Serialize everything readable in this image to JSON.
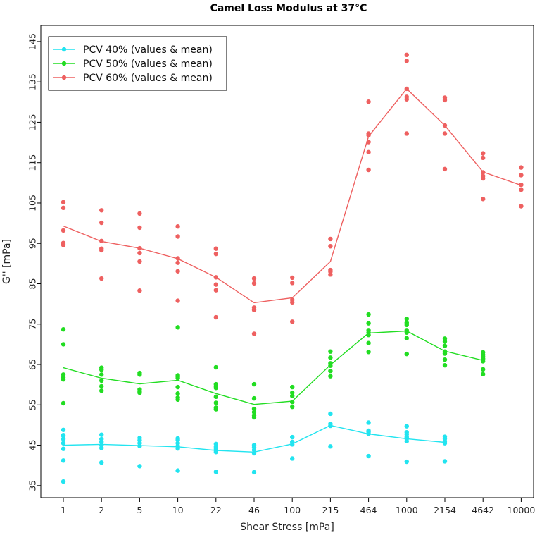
{
  "chart_data": {
    "type": "scatter",
    "title": "Camel Loss Modulus at 37°C",
    "xlabel": "Shear Stress [mPa]",
    "ylabel": "G'' [mPa]",
    "x_tick_labels": [
      "1",
      "2",
      "5",
      "10",
      "22",
      "46",
      "100",
      "215",
      "464",
      "1000",
      "2154",
      "4642",
      "10000"
    ],
    "y_ticks": [
      35,
      45,
      55,
      65,
      75,
      85,
      95,
      105,
      115,
      125,
      135,
      145
    ],
    "ylim": [
      32,
      149
    ],
    "legend_position": "top-left",
    "series": [
      {
        "name": "PCV 40% (values & mean)",
        "color": "#22e4f0",
        "mean": [
          45.0,
          45.2,
          44.9,
          44.6,
          43.7,
          43.3,
          45.3,
          49.9,
          47.8,
          46.6,
          45.7,
          null,
          null
        ],
        "values": [
          [
            36.0,
            41.2,
            44.1,
            45.5,
            46.5,
            47.3,
            47.5,
            48.8
          ],
          [
            40.7,
            44.3,
            45.0,
            45.8,
            46.5,
            47.6
          ],
          [
            39.8,
            44.8,
            45.5,
            46.2,
            46.8
          ],
          [
            38.7,
            44.2,
            44.8,
            45.5,
            46.3,
            46.7
          ],
          [
            38.4,
            43.3,
            44.0,
            44.6,
            45.3
          ],
          [
            38.3,
            43.0,
            43.8,
            44.5,
            45.0
          ],
          [
            41.7,
            45.2,
            45.8,
            47.0
          ],
          [
            44.7,
            49.8,
            50.3,
            52.8
          ],
          [
            42.3,
            47.8,
            48.3,
            48.6,
            50.6
          ],
          [
            40.9,
            46.0,
            46.6,
            47.0,
            47.7,
            48.2,
            49.7
          ],
          [
            41.0,
            45.5,
            46.0,
            46.6,
            47.1
          ],
          [],
          []
        ]
      },
      {
        "name": "PCV 50% (values & mean)",
        "color": "#22dd22",
        "mean": [
          64.2,
          61.6,
          60.2,
          61.1,
          57.8,
          55.1,
          55.9,
          64.9,
          72.8,
          73.3,
          68.3,
          66.0,
          null
        ],
        "values": [
          [
            55.4,
            61.3,
            61.8,
            62.5,
            70.0,
            73.7
          ],
          [
            58.5,
            59.6,
            61.0,
            62.5,
            63.7,
            64.2
          ],
          [
            58.0,
            58.3,
            58.8,
            62.5,
            62.9
          ],
          [
            56.3,
            56.8,
            57.8,
            59.4,
            61.6,
            62.0,
            62.3,
            74.2
          ],
          [
            53.9,
            54.3,
            55.5,
            57.0,
            59.2,
            59.6,
            60.1,
            64.3
          ],
          [
            51.9,
            52.4,
            53.2,
            54.0,
            56.6,
            60.1
          ],
          [
            54.5,
            55.7,
            57.2,
            58.0,
            59.4
          ],
          [
            62.1,
            63.4,
            64.7,
            65.3,
            66.7,
            68.2
          ],
          [
            68.1,
            70.3,
            72.3,
            72.9,
            73.5,
            75.2,
            77.4
          ],
          [
            67.6,
            71.5,
            72.9,
            73.5,
            74.8,
            75.3,
            76.3
          ],
          [
            64.8,
            66.2,
            67.7,
            68.2,
            69.6,
            70.7,
            71.4
          ],
          [
            62.6,
            63.8,
            65.8,
            66.4,
            66.9,
            67.4,
            68.0
          ],
          []
        ]
      },
      {
        "name": "PCV 60% (values & mean)",
        "color": "#ee6060",
        "mean": [
          99.3,
          95.5,
          93.8,
          91.2,
          86.6,
          80.3,
          81.5,
          90.5,
          121.5,
          133.3,
          124.2,
          112.7,
          109.4
        ],
        "values": [
          [
            94.6,
            95.1,
            98.2,
            103.8,
            105.2
          ],
          [
            86.3,
            93.3,
            93.7,
            95.6,
            100.1,
            103.2
          ],
          [
            83.3,
            90.5,
            92.6,
            93.8,
            98.9,
            102.4
          ],
          [
            80.8,
            88.1,
            90.2,
            91.3,
            96.7,
            99.2
          ],
          [
            76.7,
            83.4,
            84.8,
            86.6,
            92.4,
            93.7
          ],
          [
            72.6,
            78.5,
            79.1,
            85.1,
            86.3
          ],
          [
            75.6,
            80.4,
            81.0,
            85.2,
            86.5
          ],
          [
            87.3,
            88.0,
            88.4,
            94.3,
            96.1
          ],
          [
            113.2,
            117.6,
            120.1,
            121.8,
            122.2,
            130.1
          ],
          [
            122.2,
            130.7,
            131.3,
            133.3,
            140.2,
            141.7
          ],
          [
            113.4,
            122.2,
            124.2,
            130.5,
            131.1
          ],
          [
            106.0,
            111.1,
            111.7,
            112.6,
            116.2,
            117.3
          ],
          [
            104.2,
            108.3,
            109.5,
            111.9,
            113.8
          ]
        ]
      }
    ]
  }
}
